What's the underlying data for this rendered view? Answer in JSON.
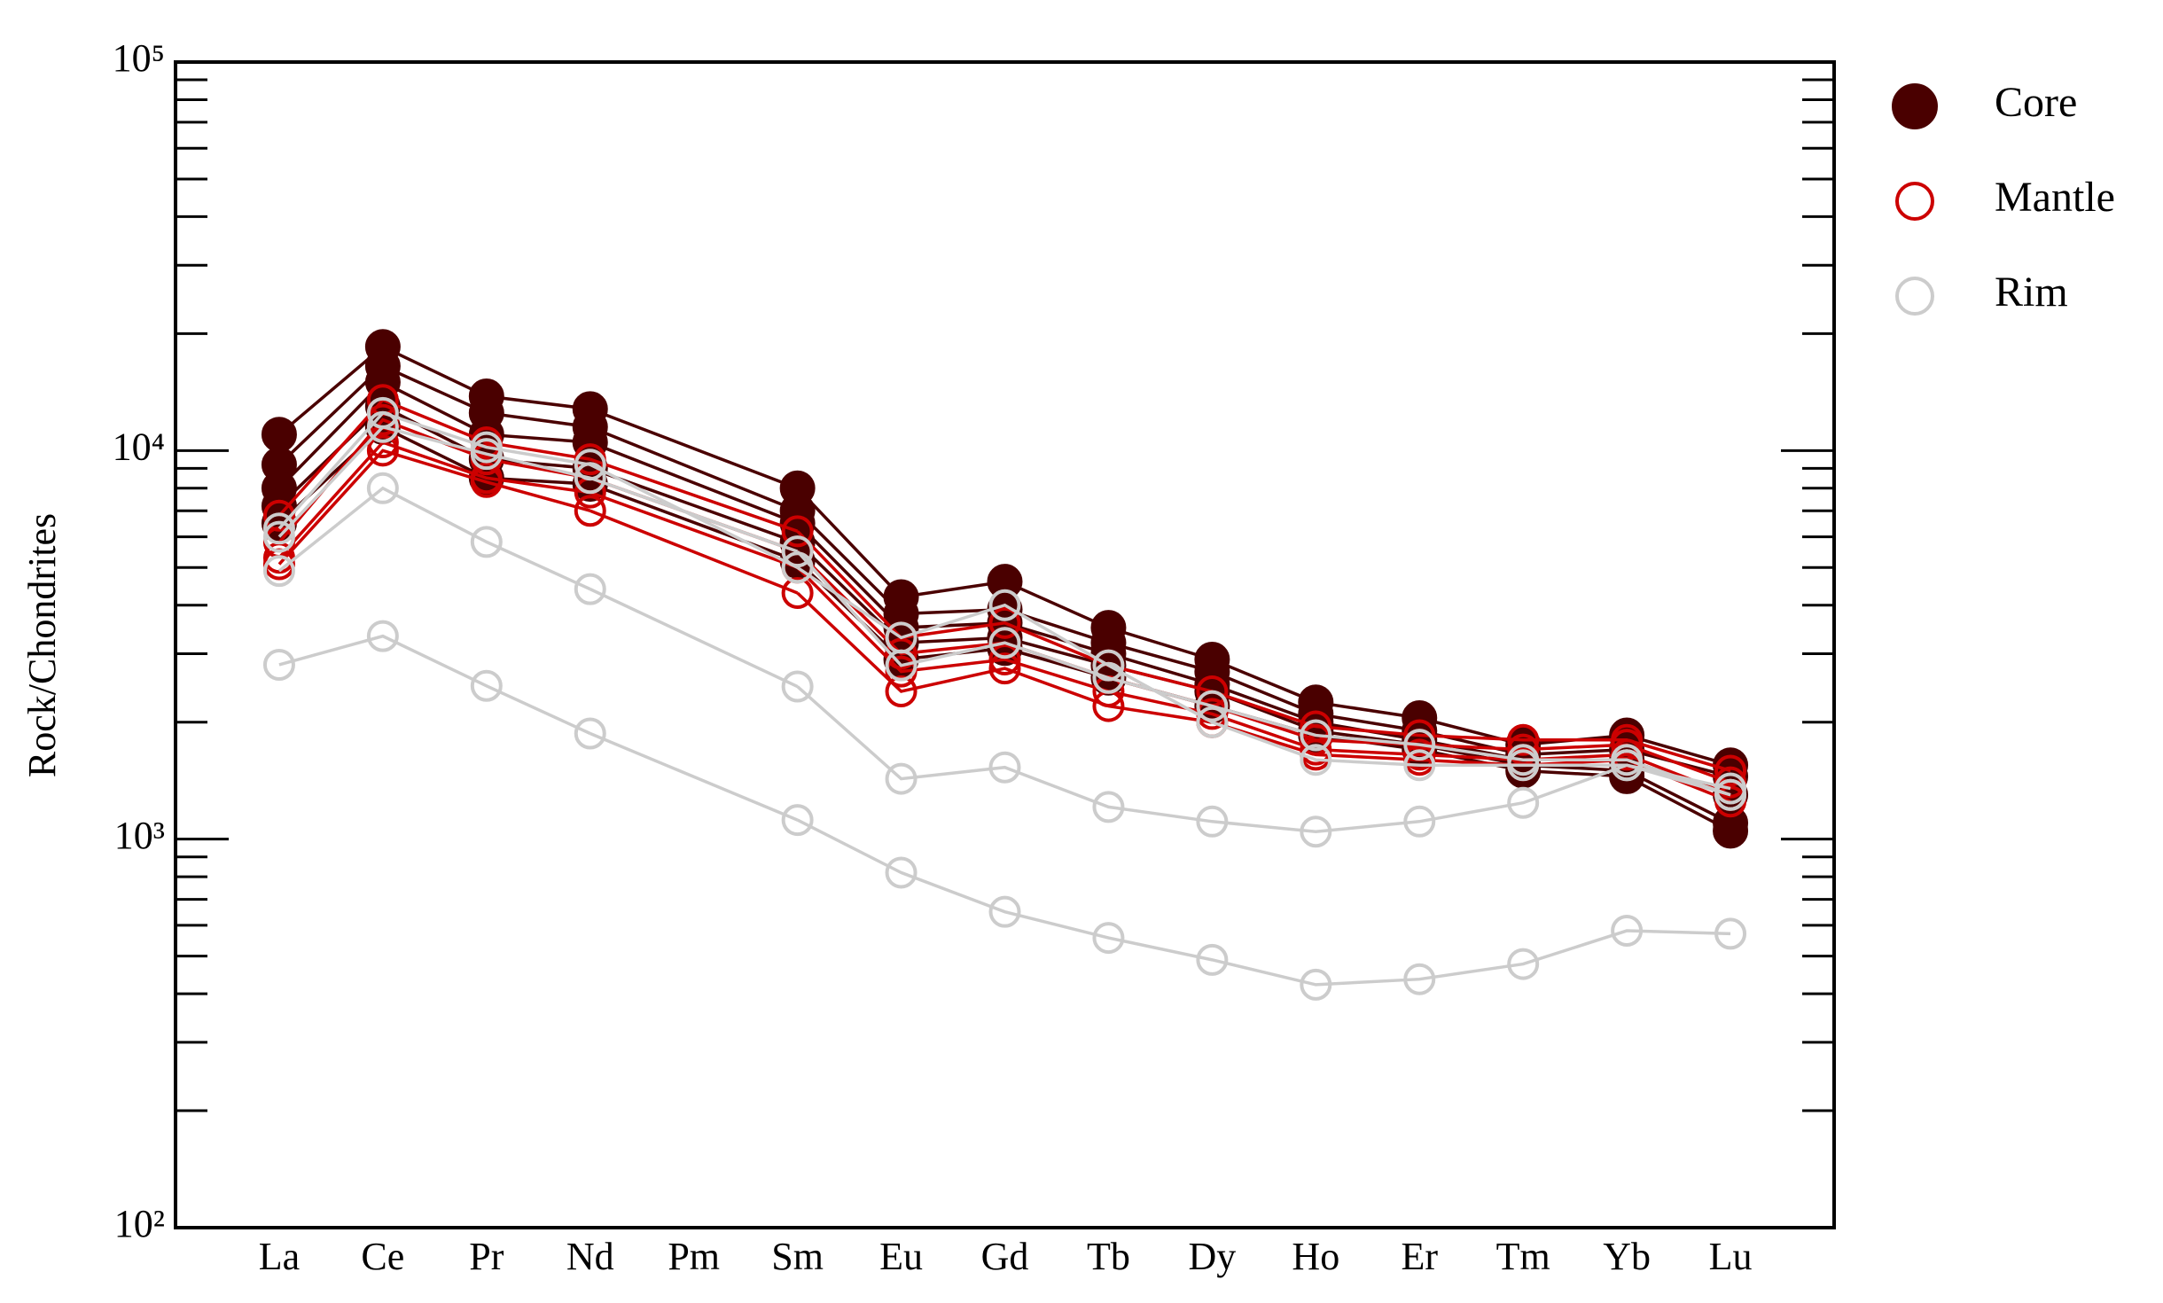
{
  "chart_data": {
    "type": "line",
    "ylabel": "Rock/Chondrites",
    "categories": [
      "La",
      "Ce",
      "Pr",
      "Nd",
      "Pm",
      "Sm",
      "Eu",
      "Gd",
      "Tb",
      "Dy",
      "Ho",
      "Er",
      "Tm",
      "Yb",
      "Lu"
    ],
    "log_y": true,
    "ylim": [
      100,
      100000
    ],
    "yticks": [
      {
        "value": 100,
        "label": "10²"
      },
      {
        "value": 1000,
        "label": "10³"
      },
      {
        "value": 10000,
        "label": "10⁴"
      },
      {
        "value": 100000,
        "label": "10⁵"
      }
    ],
    "minor_yticks": [
      200,
      300,
      400,
      500,
      600,
      700,
      800,
      900,
      2000,
      3000,
      4000,
      5000,
      6000,
      7000,
      8000,
      9000,
      20000,
      30000,
      40000,
      50000,
      60000,
      70000,
      80000,
      90000
    ],
    "legend": "outside-right",
    "series": [
      {
        "name": "Core",
        "color": "#4a0000",
        "filled": true,
        "values": [
          [
            11000,
            18500,
            13800,
            12800,
            null,
            8000,
            4200,
            4600,
            3500,
            2900,
            2250,
            2050,
            1750,
            1850,
            1550
          ],
          [
            9200,
            16500,
            12500,
            11500,
            null,
            7000,
            3800,
            3900,
            3200,
            2700,
            2100,
            1900,
            1650,
            1700,
            1450
          ],
          [
            8000,
            15000,
            11000,
            10500,
            null,
            6500,
            3500,
            3600,
            3000,
            2500,
            2000,
            1800,
            1600,
            1600,
            1300
          ],
          [
            7200,
            13000,
            9500,
            9000,
            null,
            5800,
            3200,
            3300,
            2800,
            2400,
            1900,
            1750,
            1550,
            1500,
            1100
          ],
          [
            6500,
            11500,
            8500,
            8200,
            null,
            5200,
            2900,
            3100,
            2600,
            2200,
            1850,
            1700,
            1500,
            1450,
            1050
          ]
        ]
      },
      {
        "name": "Mantle",
        "color": "#cc0000",
        "filled": false,
        "values": [
          [
            6800,
            13500,
            10500,
            9500,
            null,
            6200,
            3300,
            3600,
            2800,
            2400,
            1950,
            1850,
            1800,
            1800,
            1500
          ],
          [
            5800,
            12000,
            9500,
            8500,
            null,
            5500,
            3000,
            3200,
            2600,
            2200,
            1800,
            1750,
            1700,
            1750,
            1400
          ],
          [
            5300,
            10500,
            8500,
            7800,
            null,
            5000,
            2700,
            2900,
            2400,
            2100,
            1700,
            1650,
            1600,
            1650,
            1300
          ],
          [
            5100,
            10000,
            8300,
            7000,
            null,
            4300,
            2400,
            2750,
            2200,
            2000,
            1650,
            1600,
            1550,
            1600,
            1250
          ]
        ]
      },
      {
        "name": "Rim",
        "color": "#cccccc",
        "filled": false,
        "values": [
          [
            6000,
            11500,
            9800,
            8500,
            null,
            5500,
            2800,
            3200,
            2600,
            2200,
            1850,
            1750,
            1600,
            1600,
            1300
          ],
          [
            6300,
            12500,
            10200,
            9200,
            null,
            5000,
            3300,
            4000,
            2800,
            2000,
            1600,
            1550,
            1550,
            1550,
            1350
          ],
          [
            4900,
            8000,
            5820,
            4400,
            null,
            2470,
            1430,
            1530,
            1210,
            1110,
            1045,
            1110,
            1240,
            1550,
            1300
          ],
          [
            2810,
            3330,
            2480,
            1870,
            null,
            1120,
            820,
            650,
            557,
            489,
            422,
            436,
            477,
            581,
            571
          ]
        ]
      }
    ]
  }
}
